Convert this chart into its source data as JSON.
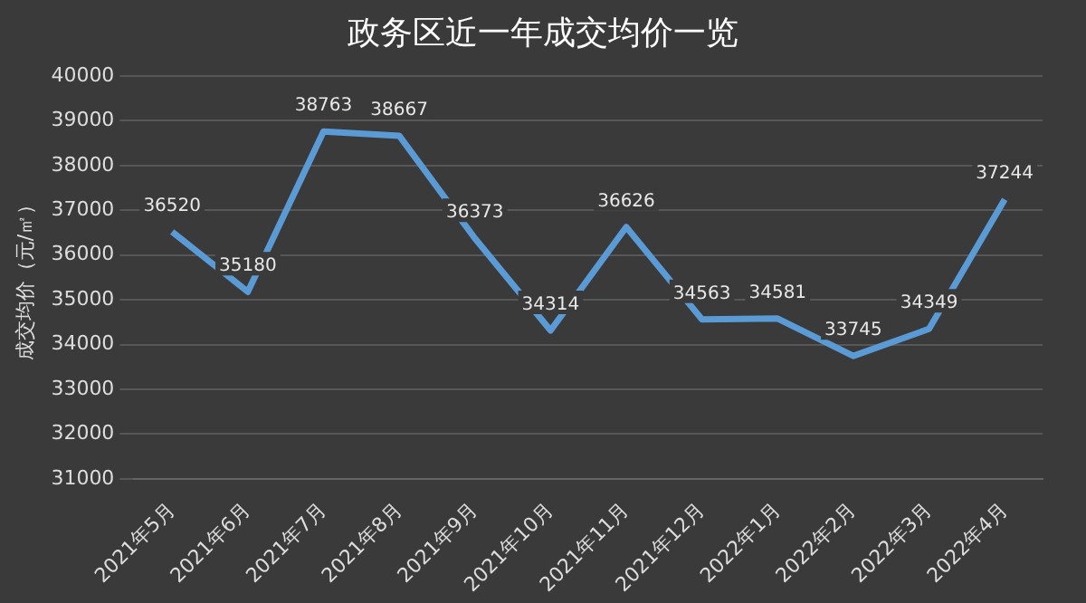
{
  "chart_data": {
    "type": "line",
    "title": "政务区近一年成交均价一览",
    "ylabel": "成交均价（元/㎡）",
    "categories": [
      "2021年5月",
      "2021年6月",
      "2021年7月",
      "2021年8月",
      "2021年9月",
      "2021年10月",
      "2021年11月",
      "2021年12月",
      "2022年1月",
      "2022年2月",
      "2022年3月",
      "2022年4月"
    ],
    "series": [
      {
        "color": "#5b9bd5",
        "values": [
          36520,
          35180,
          38763,
          38667,
          36373,
          34314,
          36626,
          34563,
          34581,
          33745,
          34349,
          37244
        ]
      }
    ],
    "ylim": [
      31000,
      40000
    ],
    "yticks": [
      31000,
      32000,
      33000,
      34000,
      35000,
      36000,
      37000,
      38000,
      39000,
      40000
    ],
    "grid": "y",
    "legend": false,
    "marker": "none",
    "data_labels": true
  }
}
